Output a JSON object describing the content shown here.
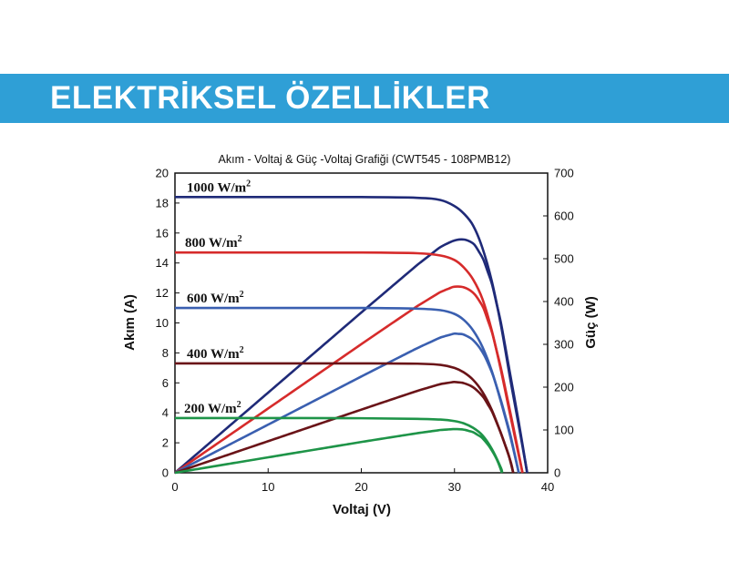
{
  "header": {
    "title": "ELEKTRİKSEL ÖZELLİKLER",
    "color": "#2f9fd6"
  },
  "chart_data": {
    "type": "line",
    "title": "Akım - Voltaj & Güç -Voltaj Grafiği (CWT545 - 108PMB12)",
    "xlabel": "Voltaj (V)",
    "ylabel": "Akım (A)",
    "y2label": "Güç (W)",
    "xlim": [
      0,
      40
    ],
    "ylim": [
      0,
      20
    ],
    "y2lim": [
      0,
      700
    ],
    "xticks": [
      "0",
      "10",
      "20",
      "30",
      "40"
    ],
    "yticks": [
      "0",
      "2",
      "4",
      "6",
      "8",
      "10",
      "12",
      "14",
      "16",
      "18",
      "20"
    ],
    "y2ticks": [
      "0",
      "100",
      "200",
      "300",
      "400",
      "500",
      "600",
      "700"
    ],
    "grid": false,
    "series": [
      {
        "name": "1000 W/m²",
        "label_base": "1000 W/m",
        "label_sup": "2",
        "color": "#1f2a78",
        "isc": 18.4,
        "voc": 37.8,
        "vk": 31.8,
        "ik": 16.8,
        "iv_points": [
          [
            0,
            18.4
          ],
          [
            10,
            18.4
          ],
          [
            20,
            18.4
          ],
          [
            26,
            18.35
          ],
          [
            28.5,
            18.2
          ],
          [
            30,
            17.8
          ],
          [
            31,
            17.3
          ],
          [
            32,
            16.5
          ],
          [
            33,
            15.0
          ],
          [
            34,
            12.8
          ],
          [
            35,
            9.8
          ],
          [
            36,
            6.2
          ],
          [
            37,
            2.8
          ],
          [
            37.8,
            0
          ]
        ],
        "power_peak": [
          31.5,
          545
        ]
      },
      {
        "name": "800 W/m²",
        "label_base": "800 W/m",
        "label_sup": "2",
        "color": "#d62b2b",
        "isc": 14.7,
        "voc": 37.3,
        "vk": 31.3,
        "ik": 13.4,
        "iv_points": [
          [
            0,
            14.7
          ],
          [
            10,
            14.7
          ],
          [
            20,
            14.7
          ],
          [
            26,
            14.65
          ],
          [
            28.5,
            14.5
          ],
          [
            30,
            14.2
          ],
          [
            31,
            13.7
          ],
          [
            32,
            12.9
          ],
          [
            33,
            11.6
          ],
          [
            34,
            9.5
          ],
          [
            35,
            6.8
          ],
          [
            36,
            3.8
          ],
          [
            37.3,
            0
          ]
        ],
        "power_peak": [
          31.2,
          435
        ]
      },
      {
        "name": "600 W/m²",
        "label_base": "600 W/m",
        "label_sup": "2",
        "color": "#3a5fb0",
        "isc": 11.0,
        "voc": 36.9,
        "vk": 31.0,
        "ik": 10.0,
        "iv_points": [
          [
            0,
            11.0
          ],
          [
            10,
            11.0
          ],
          [
            20,
            11.0
          ],
          [
            26,
            10.95
          ],
          [
            28.5,
            10.85
          ],
          [
            30,
            10.6
          ],
          [
            31,
            10.2
          ],
          [
            32,
            9.5
          ],
          [
            33,
            8.4
          ],
          [
            34,
            6.8
          ],
          [
            35,
            4.7
          ],
          [
            36,
            2.4
          ],
          [
            36.9,
            0
          ]
        ],
        "power_peak": [
          31.0,
          325
        ]
      },
      {
        "name": "400 W/m²",
        "label_base": "400 W/m",
        "label_sup": "2",
        "color": "#6a1418",
        "isc": 7.3,
        "voc": 36.3,
        "vk": 30.6,
        "ik": 6.6,
        "iv_points": [
          [
            0,
            7.3
          ],
          [
            10,
            7.3
          ],
          [
            20,
            7.3
          ],
          [
            26,
            7.28
          ],
          [
            28.5,
            7.2
          ],
          [
            30,
            7.0
          ],
          [
            31,
            6.7
          ],
          [
            32,
            6.2
          ],
          [
            33,
            5.4
          ],
          [
            34,
            4.2
          ],
          [
            35,
            2.6
          ],
          [
            36,
            0.8
          ],
          [
            36.3,
            0
          ]
        ],
        "power_peak": [
          30.8,
          212
        ]
      },
      {
        "name": "200 W/m²",
        "label_base": "200 W/m",
        "label_sup": "2",
        "color": "#1e9448",
        "isc": 3.65,
        "voc": 35.1,
        "vk": 29.8,
        "ik": 3.3,
        "iv_points": [
          [
            0,
            3.65
          ],
          [
            10,
            3.65
          ],
          [
            20,
            3.64
          ],
          [
            26,
            3.6
          ],
          [
            28.5,
            3.55
          ],
          [
            30,
            3.45
          ],
          [
            31,
            3.3
          ],
          [
            32,
            3.0
          ],
          [
            33,
            2.5
          ],
          [
            34,
            1.6
          ],
          [
            35,
            0.3
          ],
          [
            35.1,
            0
          ]
        ],
        "power_peak": [
          30.2,
          102
        ]
      }
    ]
  }
}
